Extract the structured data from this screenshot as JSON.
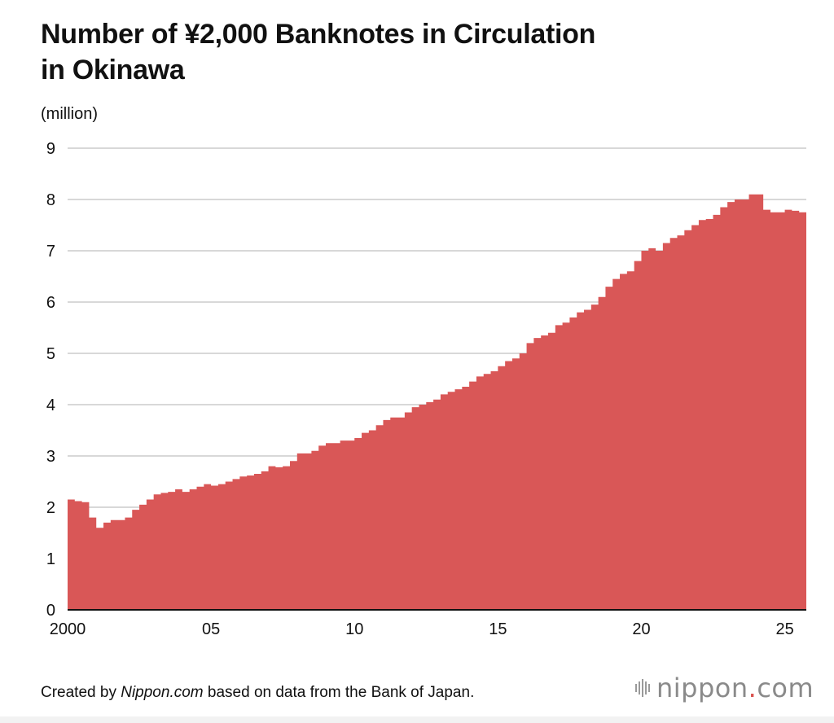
{
  "title_line1": "Number of ¥2,000 Banknotes in Circulation",
  "title_line2": "in Okinawa",
  "unit_label": "(million)",
  "footer": {
    "prefix": "Created by ",
    "source": "Nippon.com",
    "suffix": " based on data from the Bank of Japan."
  },
  "logo": {
    "name": "nippon",
    "dot": ".",
    "tld": "com",
    "icon": "sound-bars-icon"
  },
  "colors": {
    "area": "#d95757",
    "grid": "#cccccc",
    "axis": "#111111",
    "logo_dot": "#d9534f"
  },
  "chart_data": {
    "type": "area",
    "title": "Number of ¥2,000 Banknotes in Circulation in Okinawa",
    "ylabel": "(million)",
    "xlabel": "",
    "ylim": [
      0,
      9
    ],
    "xlim": [
      2000,
      2025.75
    ],
    "y_ticks": [
      0,
      1,
      2,
      3,
      4,
      5,
      6,
      7,
      8,
      9
    ],
    "x_ticks": [
      {
        "value": 2000,
        "label": "2000"
      },
      {
        "value": 2005,
        "label": "05"
      },
      {
        "value": 2010,
        "label": "10"
      },
      {
        "value": 2015,
        "label": "15"
      },
      {
        "value": 2020,
        "label": "20"
      },
      {
        "value": 2025,
        "label": "25"
      }
    ],
    "grid": true,
    "frequency": "monthly",
    "series": [
      {
        "x": [
          2000.0,
          2000.25,
          2000.5,
          2000.75,
          2001.0,
          2001.25,
          2001.5,
          2001.75,
          2002.0,
          2002.25,
          2002.5,
          2002.75,
          2003.0,
          2003.25,
          2003.5,
          2003.75,
          2004.0,
          2004.25,
          2004.5,
          2004.75,
          2005.0,
          2005.25,
          2005.5,
          2005.75,
          2006.0,
          2006.25,
          2006.5,
          2006.75,
          2007.0,
          2007.25,
          2007.5,
          2007.75,
          2008.0,
          2008.25,
          2008.5,
          2008.75,
          2009.0,
          2009.25,
          2009.5,
          2009.75,
          2010.0,
          2010.25,
          2010.5,
          2010.75,
          2011.0,
          2011.25,
          2011.5,
          2011.75,
          2012.0,
          2012.25,
          2012.5,
          2012.75,
          2013.0,
          2013.25,
          2013.5,
          2013.75,
          2014.0,
          2014.25,
          2014.5,
          2014.75,
          2015.0,
          2015.25,
          2015.5,
          2015.75,
          2016.0,
          2016.25,
          2016.5,
          2016.75,
          2017.0,
          2017.25,
          2017.5,
          2017.75,
          2018.0,
          2018.25,
          2018.5,
          2018.75,
          2019.0,
          2019.25,
          2019.5,
          2019.75,
          2020.0,
          2020.25,
          2020.5,
          2020.75,
          2021.0,
          2021.25,
          2021.5,
          2021.75,
          2022.0,
          2022.25,
          2022.5,
          2022.75,
          2023.0,
          2023.25,
          2023.5,
          2023.75,
          2024.0,
          2024.25,
          2024.5,
          2024.75,
          2025.0,
          2025.25,
          2025.5,
          2025.75
        ],
        "values": [
          2.15,
          2.12,
          2.1,
          1.8,
          1.6,
          1.7,
          1.75,
          1.75,
          1.8,
          1.95,
          2.05,
          2.15,
          2.25,
          2.28,
          2.3,
          2.35,
          2.3,
          2.35,
          2.4,
          2.45,
          2.42,
          2.45,
          2.5,
          2.55,
          2.6,
          2.62,
          2.65,
          2.7,
          2.8,
          2.78,
          2.8,
          2.9,
          3.05,
          3.05,
          3.1,
          3.2,
          3.25,
          3.25,
          3.3,
          3.3,
          3.35,
          3.45,
          3.5,
          3.6,
          3.7,
          3.75,
          3.75,
          3.85,
          3.95,
          4.0,
          4.05,
          4.1,
          4.2,
          4.25,
          4.3,
          4.35,
          4.45,
          4.55,
          4.6,
          4.65,
          4.75,
          4.85,
          4.9,
          5.0,
          5.2,
          5.3,
          5.35,
          5.4,
          5.55,
          5.6,
          5.7,
          5.8,
          5.85,
          5.95,
          6.1,
          6.3,
          6.45,
          6.55,
          6.6,
          6.8,
          7.0,
          7.05,
          7.0,
          7.15,
          7.25,
          7.3,
          7.4,
          7.5,
          7.6,
          7.62,
          7.7,
          7.85,
          7.95,
          8.0,
          8.0,
          8.1,
          8.1,
          7.8,
          7.75,
          7.75,
          7.8,
          7.78,
          7.75,
          7.7
        ]
      }
    ]
  }
}
